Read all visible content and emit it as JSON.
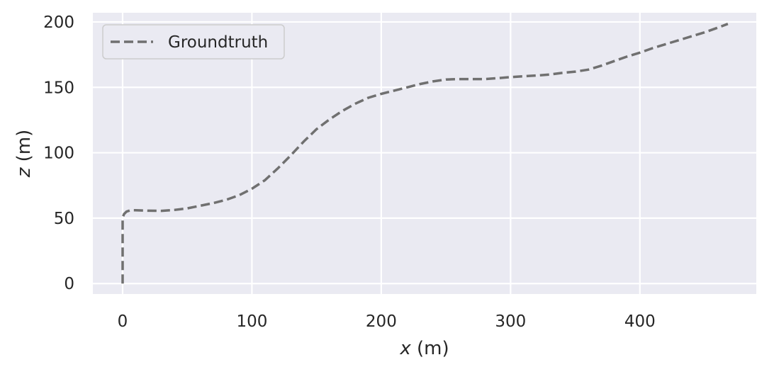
{
  "chart_data": {
    "type": "line",
    "title": "",
    "xlabel_var": "x",
    "xlabel_unit": " (m)",
    "ylabel_var": "z",
    "ylabel_unit": " (m)",
    "xlim": [
      -23,
      490
    ],
    "ylim": [
      -8,
      207
    ],
    "xticks": [
      0,
      100,
      200,
      300,
      400
    ],
    "xtick_labels": [
      "0",
      "100",
      "200",
      "300",
      "400"
    ],
    "yticks": [
      0,
      50,
      100,
      150,
      200
    ],
    "ytick_labels": [
      "0",
      "50",
      "100",
      "150",
      "200"
    ],
    "grid": true,
    "legend": {
      "position": "top-left",
      "entries": [
        "Groundtruth"
      ]
    },
    "series": [
      {
        "name": "Groundtruth",
        "color": "#707070",
        "style": "dashed",
        "x": [
          0,
          0,
          0,
          0,
          1,
          3,
          6,
          10,
          20,
          30,
          40,
          50,
          60,
          70,
          80,
          90,
          100,
          110,
          120,
          130,
          140,
          150,
          160,
          170,
          180,
          190,
          200,
          210,
          220,
          230,
          240,
          250,
          260,
          270,
          280,
          290,
          300,
          310,
          320,
          330,
          340,
          350,
          360,
          370,
          380,
          390,
          400,
          410,
          420,
          430,
          440,
          450,
          460,
          468
        ],
        "y": [
          0,
          20,
          40,
          50,
          53,
          55,
          56,
          56,
          55.7,
          55.6,
          56.3,
          57.5,
          59.5,
          61.5,
          64,
          67.5,
          72.5,
          79,
          88,
          98,
          108.5,
          118,
          125.5,
          132,
          137.5,
          142,
          145,
          147.5,
          150,
          152.5,
          154.5,
          156,
          156.3,
          156.3,
          156.3,
          157,
          157.8,
          158.5,
          159,
          159.8,
          161,
          162,
          163.5,
          166.5,
          170,
          173.5,
          176.5,
          180,
          183,
          186,
          189,
          192,
          195.5,
          198.5
        ]
      }
    ]
  }
}
